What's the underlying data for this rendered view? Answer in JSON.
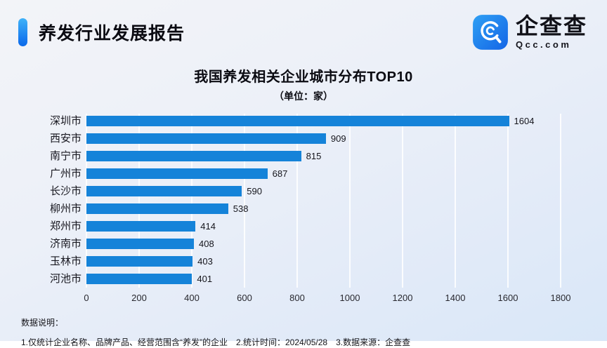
{
  "header": {
    "report_title": "养发行业发展报告",
    "logo": {
      "name": "企查查",
      "domain": "Qcc.com"
    }
  },
  "chart_data": {
    "type": "bar",
    "orientation": "horizontal",
    "title": "我国养发相关企业城市分布TOP10",
    "subtitle": "（单位：家）",
    "categories": [
      "深圳市",
      "西安市",
      "南宁市",
      "广州市",
      "长沙市",
      "柳州市",
      "郑州市",
      "济南市",
      "玉林市",
      "河池市"
    ],
    "values": [
      1604,
      909,
      815,
      687,
      590,
      538,
      414,
      408,
      403,
      401
    ],
    "xlim": [
      0,
      1800
    ],
    "x_ticks": [
      0,
      200,
      400,
      600,
      800,
      1000,
      1200,
      1400,
      1600,
      1800
    ],
    "xlabel": "",
    "ylabel": "",
    "grid": true,
    "legend": "none",
    "bar_color": "#1583d9",
    "grid_color": "rgba(255,255,255,0.85)"
  },
  "footer": {
    "label": "数据说明：",
    "note": "1.仅统计企业名称、品牌产品、经营范围含“养发”的企业　2.统计时间：2024/05/28　3.数据来源：企查查"
  }
}
